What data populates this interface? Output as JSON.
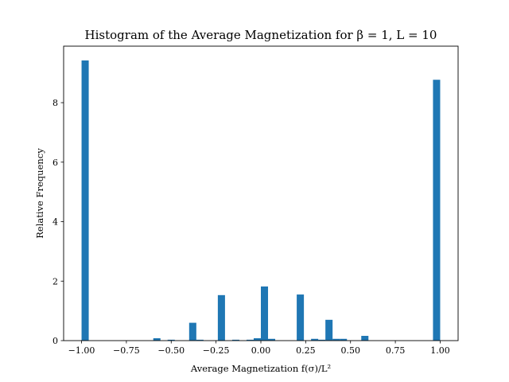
{
  "chart_data": {
    "type": "bar",
    "title": "Histogram of the Average Magnetization for β = 1, L = 10",
    "xlabel": "Average Magnetization f(σ)/L²",
    "ylabel": "Relative Frequency",
    "xlim": [
      -1.1,
      1.1
    ],
    "ylim": [
      0,
      9.9
    ],
    "bar_width": 0.04,
    "xticks": [
      -1.0,
      -0.75,
      -0.5,
      -0.25,
      0.0,
      0.25,
      0.5,
      0.75,
      1.0
    ],
    "xtick_labels": [
      "−1.00",
      "−0.75",
      "−0.50",
      "−0.25",
      "0.00",
      "0.25",
      "0.50",
      "0.75",
      "1.00"
    ],
    "yticks": [
      0,
      2,
      4,
      6,
      8
    ],
    "ytick_labels": [
      "0",
      "2",
      "4",
      "6",
      "8"
    ],
    "grid": false,
    "color": "#1f77b4",
    "bars": [
      {
        "x": -0.98,
        "value": 9.42
      },
      {
        "x": -0.58,
        "value": 0.08
      },
      {
        "x": -0.5,
        "value": 0.03
      },
      {
        "x": -0.38,
        "value": 0.6
      },
      {
        "x": -0.34,
        "value": 0.03
      },
      {
        "x": -0.22,
        "value": 1.53
      },
      {
        "x": -0.14,
        "value": 0.03
      },
      {
        "x": -0.06,
        "value": 0.03
      },
      {
        "x": -0.02,
        "value": 0.08
      },
      {
        "x": 0.02,
        "value": 1.82
      },
      {
        "x": 0.06,
        "value": 0.06
      },
      {
        "x": 0.22,
        "value": 1.55
      },
      {
        "x": 0.3,
        "value": 0.06
      },
      {
        "x": 0.34,
        "value": 0.03
      },
      {
        "x": 0.38,
        "value": 0.7
      },
      {
        "x": 0.42,
        "value": 0.06
      },
      {
        "x": 0.46,
        "value": 0.06
      },
      {
        "x": 0.58,
        "value": 0.16
      },
      {
        "x": 0.98,
        "value": 8.77
      }
    ]
  }
}
